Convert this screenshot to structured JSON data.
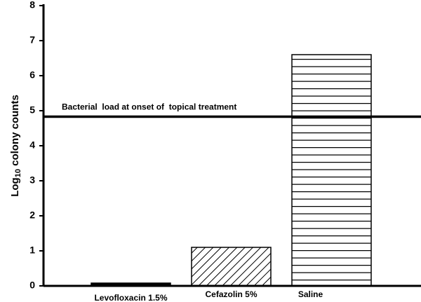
{
  "chart_data": {
    "type": "bar",
    "ylabel_parts": [
      "Log",
      "10",
      " colony counts"
    ],
    "categories": [
      "Levofloxacin 1.5%",
      "Cefazolin 5%",
      "Saline"
    ],
    "values": [
      0.08,
      1.1,
      6.6
    ],
    "hatches": [
      "solid",
      "diagonal",
      "horizontal"
    ],
    "color": "#000000",
    "ylim": [
      0,
      8
    ],
    "yticks": [
      0,
      1,
      2,
      3,
      4,
      5,
      6,
      7,
      8
    ],
    "reference_line": {
      "value": 4.83,
      "label": "Bacterial  load at onset of  topical treatment"
    }
  }
}
